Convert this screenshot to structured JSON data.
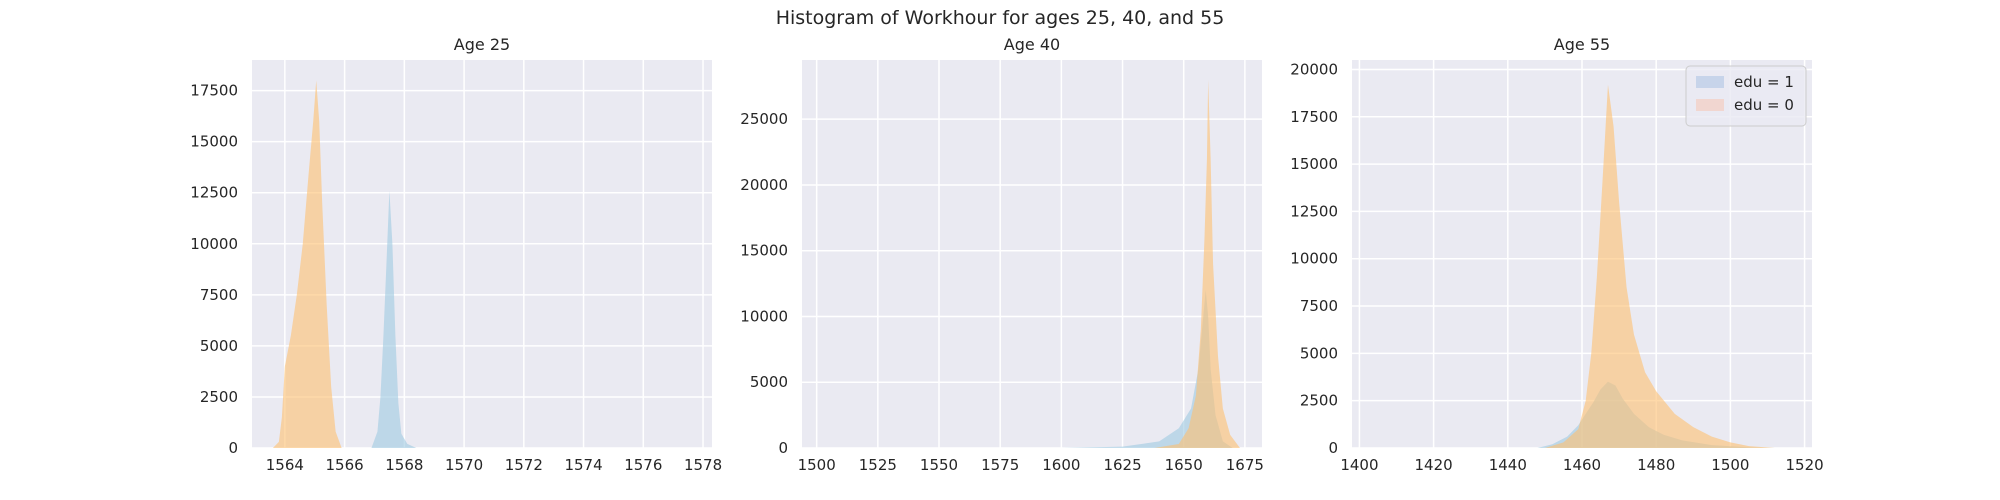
{
  "figure": {
    "title": "Histogram of Workhour for ages 25, 40, and 55"
  },
  "chart_data": [
    {
      "type": "histogram",
      "title": "Age 25",
      "xlabel": "",
      "ylabel": "",
      "xlim": [
        1562.9,
        1578.3
      ],
      "ylim": [
        0,
        19000
      ],
      "xticks": [
        1564,
        1566,
        1568,
        1570,
        1572,
        1574,
        1576,
        1578
      ],
      "yticks": [
        0,
        2500,
        5000,
        7500,
        10000,
        12500,
        15000,
        17500
      ],
      "grid": true,
      "series": [
        {
          "name": "edu = 1",
          "color": "#9ecae1",
          "points": [
            [
              1566.9,
              0
            ],
            [
              1567.1,
              800
            ],
            [
              1567.2,
              2500
            ],
            [
              1567.3,
              5500
            ],
            [
              1567.4,
              9000
            ],
            [
              1567.5,
              12600
            ],
            [
              1567.6,
              10000
            ],
            [
              1567.7,
              5500
            ],
            [
              1567.8,
              2200
            ],
            [
              1567.9,
              700
            ],
            [
              1568.1,
              200
            ],
            [
              1568.4,
              0
            ]
          ]
        },
        {
          "name": "edu = 0",
          "color": "#fdbf6f",
          "points": [
            [
              1563.6,
              0
            ],
            [
              1563.8,
              300
            ],
            [
              1563.9,
              1500
            ],
            [
              1564.0,
              4000
            ],
            [
              1564.2,
              5500
            ],
            [
              1564.4,
              7500
            ],
            [
              1564.6,
              10000
            ],
            [
              1564.8,
              13500
            ],
            [
              1564.95,
              16000
            ],
            [
              1565.05,
              18000
            ],
            [
              1565.15,
              16000
            ],
            [
              1565.25,
              12000
            ],
            [
              1565.4,
              7000
            ],
            [
              1565.55,
              3000
            ],
            [
              1565.7,
              800
            ],
            [
              1565.9,
              0
            ]
          ]
        }
      ]
    },
    {
      "type": "histogram",
      "title": "Age 40",
      "xlabel": "",
      "ylabel": "",
      "xlim": [
        1494,
        1682
      ],
      "ylim": [
        0,
        29500
      ],
      "xticks": [
        1500,
        1525,
        1550,
        1575,
        1600,
        1625,
        1650,
        1675
      ],
      "yticks": [
        0,
        5000,
        10000,
        15000,
        20000,
        25000
      ],
      "grid": true,
      "series": [
        {
          "name": "edu = 1",
          "color": "#9ecae1",
          "points": [
            [
              1600,
              0
            ],
            [
              1625,
              100
            ],
            [
              1640,
              500
            ],
            [
              1648,
              1500
            ],
            [
              1653,
              3000
            ],
            [
              1656,
              6000
            ],
            [
              1658,
              10000
            ],
            [
              1659,
              12000
            ],
            [
              1660,
              10000
            ],
            [
              1661,
              6000
            ],
            [
              1663,
              2500
            ],
            [
              1666,
              500
            ],
            [
              1670,
              0
            ]
          ]
        },
        {
          "name": "edu = 0",
          "color": "#fdbf6f",
          "points": [
            [
              1638,
              0
            ],
            [
              1648,
              300
            ],
            [
              1652,
              1500
            ],
            [
              1655,
              4000
            ],
            [
              1657,
              9000
            ],
            [
              1658.5,
              16000
            ],
            [
              1659.5,
              22000
            ],
            [
              1660,
              28000
            ],
            [
              1661,
              22000
            ],
            [
              1662,
              14000
            ],
            [
              1664,
              7000
            ],
            [
              1666,
              3000
            ],
            [
              1669,
              1000
            ],
            [
              1673,
              0
            ]
          ]
        }
      ]
    },
    {
      "type": "histogram",
      "title": "Age 55",
      "xlabel": "",
      "ylabel": "",
      "xlim": [
        1398,
        1522
      ],
      "ylim": [
        0,
        20500
      ],
      "xticks": [
        1400,
        1420,
        1440,
        1460,
        1480,
        1500,
        1520
      ],
      "yticks": [
        0,
        2500,
        5000,
        7500,
        10000,
        12500,
        15000,
        17500,
        20000
      ],
      "grid": true,
      "legend": "top-right",
      "series": [
        {
          "name": "edu = 1",
          "color": "#9ecae1",
          "points": [
            [
              1448,
              0
            ],
            [
              1452,
              200
            ],
            [
              1456,
              600
            ],
            [
              1459,
              1200
            ],
            [
              1461,
              1800
            ],
            [
              1463,
              2400
            ],
            [
              1465,
              3100
            ],
            [
              1467,
              3500
            ],
            [
              1469,
              3300
            ],
            [
              1471,
              2600
            ],
            [
              1474,
              1800
            ],
            [
              1478,
              1100
            ],
            [
              1482,
              700
            ],
            [
              1487,
              400
            ],
            [
              1495,
              150
            ],
            [
              1505,
              30
            ],
            [
              1512,
              0
            ]
          ]
        },
        {
          "name": "edu = 0",
          "color": "#fdbf6f",
          "points": [
            [
              1450,
              0
            ],
            [
              1455,
              300
            ],
            [
              1459,
              1000
            ],
            [
              1461,
              2500
            ],
            [
              1462.5,
              5000
            ],
            [
              1464,
              9000
            ],
            [
              1465.5,
              14000
            ],
            [
              1467,
              19200
            ],
            [
              1468.5,
              17000
            ],
            [
              1470,
              13000
            ],
            [
              1472,
              8500
            ],
            [
              1474,
              6000
            ],
            [
              1477,
              4000
            ],
            [
              1480,
              3000
            ],
            [
              1485,
              1800
            ],
            [
              1490,
              1100
            ],
            [
              1495,
              600
            ],
            [
              1500,
              300
            ],
            [
              1505,
              100
            ],
            [
              1512,
              0
            ]
          ]
        }
      ]
    }
  ],
  "legend": {
    "items": [
      {
        "label": "edu = 1",
        "color": "#c7d4ea"
      },
      {
        "label": "edu = 0",
        "color": "#f1d6d0"
      }
    ]
  }
}
